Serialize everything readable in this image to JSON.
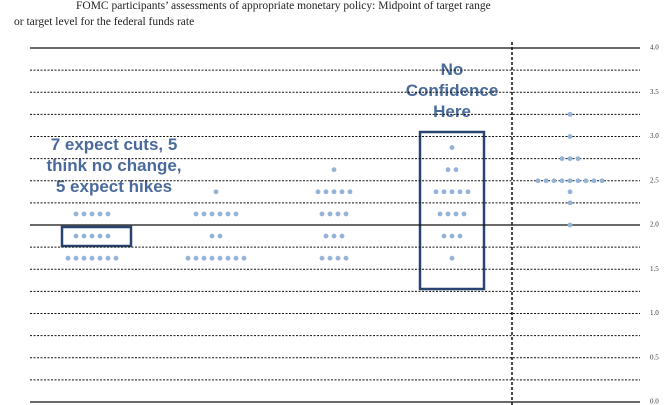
{
  "chart_data": {
    "type": "dot-plot",
    "title": "FOMC participants’ assessments of appropriate monetary policy: Midpoint of target range",
    "subtitle": "or target level for the federal funds rate",
    "ylim": [
      0,
      4
    ],
    "yticks": [
      {
        "value": 0,
        "label": "0.0"
      },
      0.5,
      {
        "value": 1,
        "label": "1.0"
      },
      1.5,
      {
        "value": 2,
        "label": "2.0"
      },
      2.5,
      {
        "value": 3,
        "label": "3.0"
      },
      3.5,
      {
        "value": 4,
        "label": "4.0"
      }
    ],
    "minor_gridlines": [
      0.25,
      0.75,
      1.25,
      1.75,
      2.25,
      2.75,
      3.25,
      3.75
    ],
    "solid_gridlines": [
      4,
      2,
      0
    ],
    "color": "#94b3d6",
    "columns": [
      {
        "dots": [
          {
            "y": 2.125,
            "count": 5
          },
          {
            "y": 1.875,
            "count": 5
          },
          {
            "y": 1.625,
            "count": 7
          }
        ]
      },
      {
        "dots": [
          {
            "y": 2.375,
            "count": 1
          },
          {
            "y": 2.125,
            "count": 6
          },
          {
            "y": 1.875,
            "count": 2
          },
          {
            "y": 1.625,
            "count": 8
          }
        ]
      },
      {
        "dots": [
          {
            "y": 2.625,
            "count": 1
          },
          {
            "y": 2.375,
            "count": 5
          },
          {
            "y": 2.125,
            "count": 4
          },
          {
            "y": 1.875,
            "count": 3
          },
          {
            "y": 1.625,
            "count": 4
          }
        ]
      },
      {
        "dots": [
          {
            "y": 2.875,
            "count": 1
          },
          {
            "y": 2.625,
            "count": 2
          },
          {
            "y": 2.375,
            "count": 5
          },
          {
            "y": 2.125,
            "count": 4
          },
          {
            "y": 1.875,
            "count": 3
          },
          {
            "y": 1.625,
            "count": 1
          }
        ]
      },
      {
        "dots": [
          {
            "y": 3.25,
            "count": 1
          },
          {
            "y": 3,
            "count": 1
          },
          {
            "y": 2.75,
            "count": 3
          },
          {
            "y": 2.5,
            "count": 9
          },
          {
            "y": 2.375,
            "count": 1
          },
          {
            "y": 2.25,
            "count": 1
          },
          {
            "y": 2,
            "count": 1
          }
        ]
      }
    ],
    "annotations": [
      [
        "7 expect cuts, 5",
        "think no change,",
        "5 expect hikes"
      ],
      [
        "No",
        "Confidence",
        "Here"
      ]
    ]
  }
}
